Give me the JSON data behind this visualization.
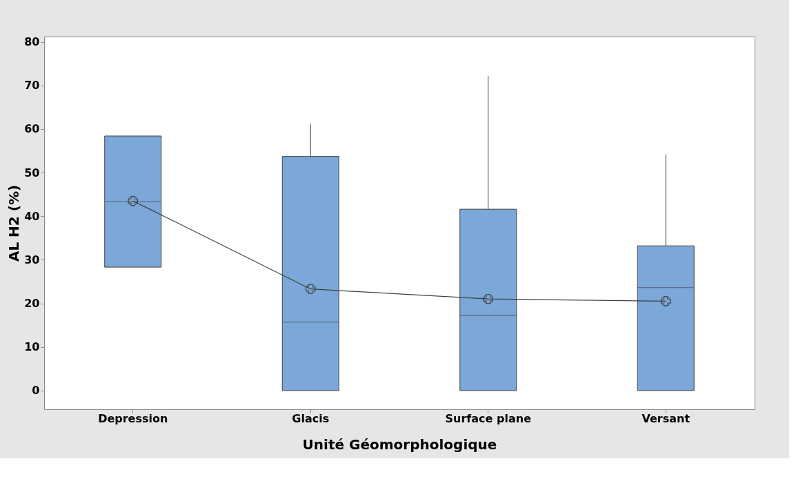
{
  "chart_data": {
    "type": "box",
    "xlabel": "Unité Géomorphologique",
    "ylabel": "AL H2 (%)",
    "categories": [
      "Depression",
      "Glacis",
      "Surface plane",
      "Versant"
    ],
    "ylim": [
      -4.3,
      81.2
    ],
    "yticks": [
      0,
      10,
      20,
      30,
      40,
      50,
      60,
      70,
      80
    ],
    "grid": false,
    "series": [
      {
        "color": "#7ba7d9",
        "boxes": [
          {
            "low": 28.3,
            "q1": 28.3,
            "median": 43.3,
            "q3": 58.4,
            "high": 58.4,
            "mean": 43.5
          },
          {
            "low": 0,
            "q1": 0,
            "median": 15.7,
            "q3": 53.7,
            "high": 61.2,
            "mean": 23.3
          },
          {
            "low": 0,
            "q1": 0,
            "median": 17.2,
            "q3": 41.6,
            "high": 72.2,
            "mean": 21.0
          },
          {
            "low": 0,
            "q1": 0,
            "median": 23.6,
            "q3": 33.2,
            "high": 54.2,
            "mean": 20.5
          }
        ]
      },
      {
        "type": "line",
        "color": "#404040",
        "marker": "none",
        "values": [
          43.5,
          23.3,
          21.0,
          20.5
        ]
      }
    ]
  }
}
